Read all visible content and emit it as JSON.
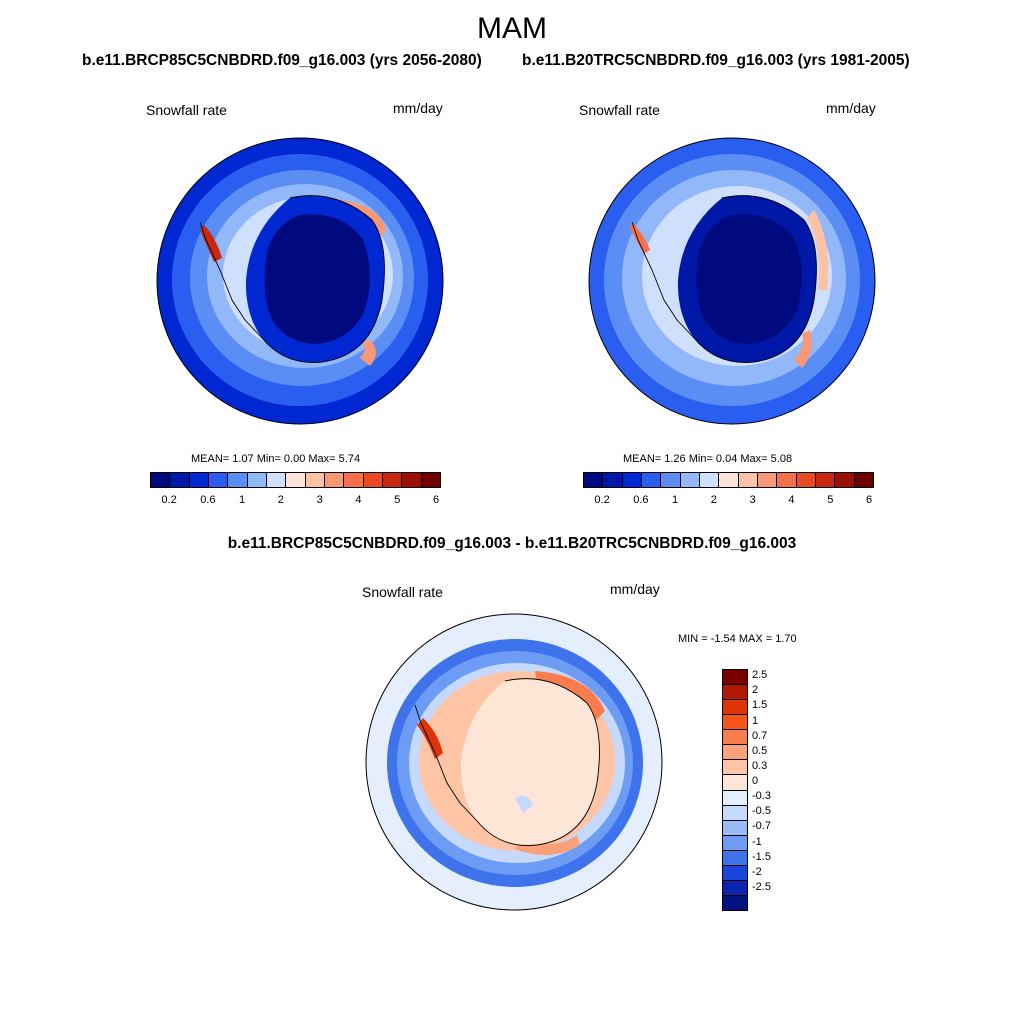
{
  "figure": {
    "title": "MAM",
    "case_a": "b.e11.BRCP85C5CNBDRD.f09_g16.003 (yrs 2056-2080)",
    "case_b": "b.e11.B20TRC5CNBDRD.f09_g16.003 (yrs 1981-2005)",
    "diff_title": "b.e11.BRCP85C5CNBDRD.f09_g16.003 - b.e11.B20TRC5CNBDRD.f09_g16.003"
  },
  "panels": {
    "left": {
      "variable": "Snowfall rate",
      "units": "mm/day",
      "stats": "MEAN=   1.07  Min=   0.00  Max=   5.74"
    },
    "right": {
      "variable": "Snowfall rate",
      "units": "mm/day",
      "stats": "MEAN=   1.26  Min=   0.04  Max=   5.08"
    },
    "diff": {
      "variable": "Snowfall rate",
      "units": "mm/day",
      "stats": "MIN =  -1.54 MAX =   1.70"
    }
  },
  "colorbar_abs": {
    "tick_labels": [
      "0.2",
      "0.6",
      "1",
      "2",
      "3",
      "4",
      "5",
      "6"
    ],
    "colors": [
      "#000a7f",
      "#0018a8",
      "#0028d2",
      "#2a5ef0",
      "#5b8ef5",
      "#93b8fa",
      "#cfe0fc",
      "#fde3d3",
      "#fbc2a6",
      "#f99877",
      "#f76e48",
      "#ea4a22",
      "#c9270f",
      "#9a1005",
      "#700000"
    ]
  },
  "colorbar_diff": {
    "tick_labels": [
      "2.5",
      "2",
      "1.5",
      "1",
      "0.7",
      "0.5",
      "0.3",
      "0",
      "-0.3",
      "-0.5",
      "-0.7",
      "-1",
      "-1.5",
      "-2",
      "-2.5"
    ],
    "colors": [
      "#7a0000",
      "#b31800",
      "#df3405",
      "#f7541c",
      "#f97c4c",
      "#fba179",
      "#fdc5a6",
      "#fde6d6",
      "#e4eefc",
      "#c4d9fb",
      "#99bcf8",
      "#6c9cf3",
      "#3e73ec",
      "#1a46dc",
      "#0a24b0",
      "#00137f"
    ]
  }
}
